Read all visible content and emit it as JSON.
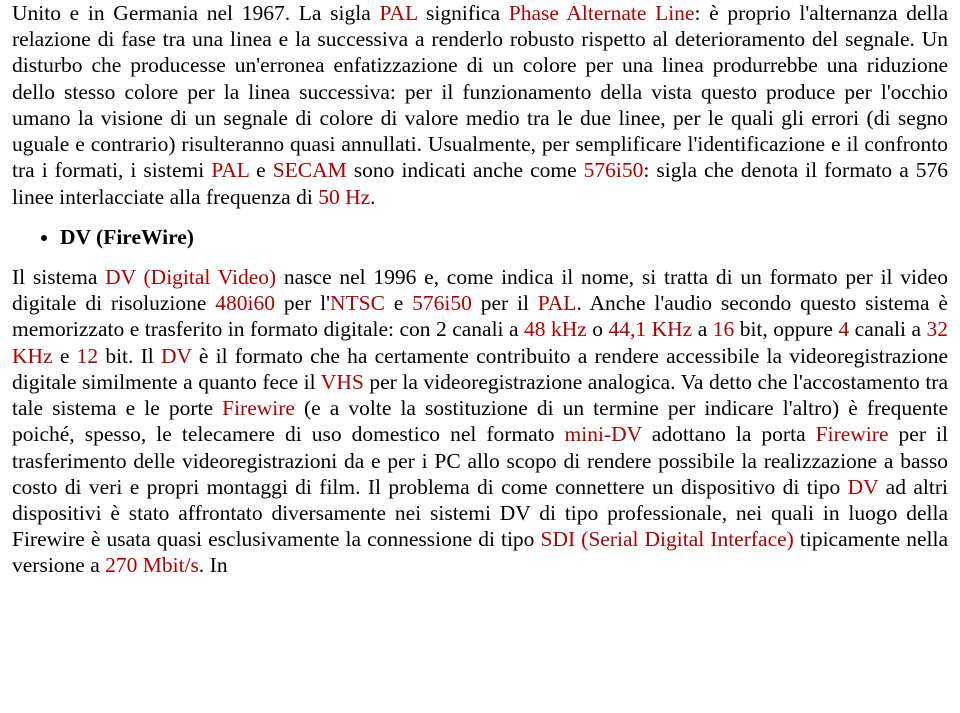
{
  "colors": {
    "text": "#000000",
    "term": "#b30000",
    "background": "#ffffff"
  },
  "typography": {
    "family": "Times New Roman",
    "body_size_pt": 16,
    "line_height": 1.22
  },
  "p1": {
    "t0": "Unito e in Germania nel 1967. La sigla ",
    "t1": "PAL",
    "t2": " significa ",
    "t3": "Phase Alternate Line",
    "t4": ": è proprio l'alternanza della relazione di fase tra una linea e la successiva a renderlo robusto rispetto al deterioramento del segnale. Un disturbo che producesse un'erronea enfatizzazione di un colore per una linea produrrebbe una riduzione dello stesso colore per la linea successiva: per il funzionamento della vista questo produce per l'occhio umano la visione di un segnale di colore di valore medio tra le due linee, per le quali gli errori (di segno uguale e contrario) risulteranno quasi annullati. Usualmente, per semplificare l'identificazione e il confronto tra i formati, i sistemi ",
    "t5": "PAL",
    "t6": " e ",
    "t7": "SECAM",
    "t8": " sono indicati anche come ",
    "t9": "576i50",
    "t10": ": sigla che denota il formato a 576 linee interlacciate alla frequenza di ",
    "t11": "50 Hz",
    "t12": "."
  },
  "bullet": {
    "label": "DV (FireWire)"
  },
  "p2": {
    "t0": "Il sistema ",
    "t1": "DV (Digital Video)",
    "t2": " nasce nel 1996 e, come indica il nome, si tratta di un formato per il video digitale di risoluzione ",
    "t3": "480i60",
    "t4": " per l'",
    "t5": "NTSC",
    "t6": " e ",
    "t7": "576i50",
    "t8": " per il ",
    "t9": "PAL",
    "t10": ". Anche l'audio secondo questo sistema è memorizzato e trasferito in formato digitale: con 2 canali a ",
    "t11": "48 kHz",
    "t12": " o ",
    "t13": "44,1 KHz",
    "t14": " a ",
    "t15": "16",
    "t16": " bit, oppure ",
    "t17": "4",
    "t18": " canali a ",
    "t19": "32 KHz",
    "t20": " e ",
    "t21": "12",
    "t22": " bit. Il ",
    "t23": "DV",
    "t24": " è il formato che ha certamente contribuito a rendere accessibile la videoregistrazione digitale similmente a quanto fece il ",
    "t25": "VHS",
    "t26": " per la videoregistrazione analogica. Va detto che l'accostamento tra tale sistema e le porte ",
    "t27": "Firewire",
    "t28": " (e a volte la sostituzione di un termine per indicare l'altro) è frequente poiché, spesso, le telecamere di uso domestico nel formato ",
    "t29": "mini-DV",
    "t30": " adottano la porta ",
    "t31": "Firewire",
    "t32": " per il trasferimento delle videoregistrazioni da e per i PC allo scopo di rendere possibile la realizzazione a basso costo di veri e propri montaggi di film. Il problema di come connettere un dispositivo di tipo ",
    "t33": "DV",
    "t34": " ad altri dispositivi è stato affrontato diversamente nei sistemi DV di tipo professionale, nei quali in luogo della Firewire è usata quasi esclusivamente la connessione di tipo ",
    "t35": "SDI (Serial Digital Interface)",
    "t36": " tipicamente nella versione a ",
    "t37": "270 Mbit/s",
    "t38": ". In"
  }
}
